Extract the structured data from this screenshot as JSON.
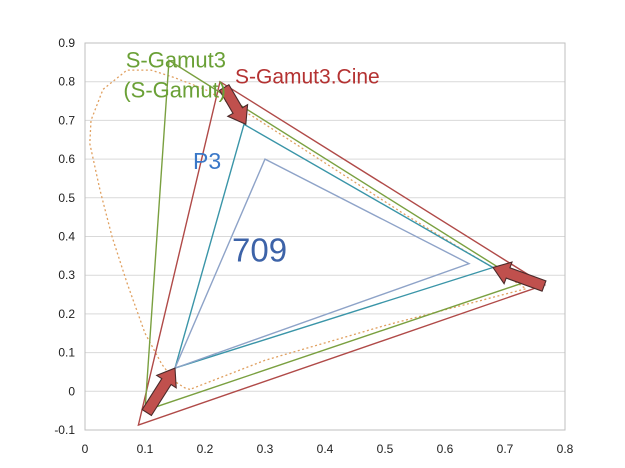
{
  "chart_data": {
    "type": "line",
    "title": "",
    "xlabel": "",
    "ylabel": "",
    "xlim": [
      0,
      0.8
    ],
    "ylim": [
      -0.1,
      0.9
    ],
    "xticks": [
      "0",
      "0.1",
      "0.2",
      "0.3",
      "0.4",
      "0.5",
      "0.6",
      "0.7",
      "0.8"
    ],
    "yticks": [
      "-0.1",
      "0",
      "0.1",
      "0.2",
      "0.3",
      "0.4",
      "0.5",
      "0.6",
      "0.7",
      "0.8",
      "0.9"
    ],
    "grid": "horizontal",
    "series": [
      {
        "name": "S-Gamut3.Cine",
        "color": "#b04a48",
        "closed": true,
        "points": [
          [
            0.766,
            0.275
          ],
          [
            0.225,
            0.8
          ],
          [
            0.089,
            -0.087
          ]
        ]
      },
      {
        "name": "S-Gamut3\n(S-Gamut)",
        "color": "#7aa040",
        "closed": true,
        "points": [
          [
            0.73,
            0.28
          ],
          [
            0.14,
            0.855
          ],
          [
            0.1,
            -0.05
          ]
        ]
      },
      {
        "name": "P3",
        "color": "#3a95a8",
        "closed": true,
        "points": [
          [
            0.68,
            0.32
          ],
          [
            0.265,
            0.69
          ],
          [
            0.15,
            0.06
          ]
        ]
      },
      {
        "name": "709",
        "color": "#8ea3c8",
        "closed": true,
        "points": [
          [
            0.64,
            0.33
          ],
          [
            0.3,
            0.6
          ],
          [
            0.15,
            0.06
          ]
        ]
      }
    ],
    "locus": {
      "color": "#e0a060",
      "points": [
        [
          0.175,
          0.005
        ],
        [
          0.166,
          0.009
        ],
        [
          0.15,
          0.025
        ],
        [
          0.128,
          0.07
        ],
        [
          0.1,
          0.15
        ],
        [
          0.07,
          0.28
        ],
        [
          0.045,
          0.4
        ],
        [
          0.025,
          0.52
        ],
        [
          0.008,
          0.64
        ],
        [
          0.01,
          0.7
        ],
        [
          0.03,
          0.78
        ],
        [
          0.07,
          0.83
        ],
        [
          0.11,
          0.83
        ],
        [
          0.15,
          0.81
        ],
        [
          0.2,
          0.78
        ],
        [
          0.28,
          0.71
        ],
        [
          0.35,
          0.64
        ],
        [
          0.44,
          0.55
        ],
        [
          0.53,
          0.46
        ],
        [
          0.62,
          0.375
        ],
        [
          0.69,
          0.31
        ],
        [
          0.735,
          0.265
        ],
        [
          0.5,
          0.17
        ],
        [
          0.3,
          0.08
        ],
        [
          0.175,
          0.005
        ]
      ]
    },
    "annotations": [
      {
        "text": "S-Gamut3\n(S-Gamut)",
        "x": 0.235,
        "y": 0.8,
        "color": "#6aa036",
        "anchor": "end"
      },
      {
        "text": "S-Gamut3.Cine",
        "x": 0.25,
        "y": 0.795,
        "color": "#b43232",
        "anchor": "start"
      },
      {
        "text": "P3",
        "x": 0.18,
        "y": 0.575,
        "color": "#3a78c8",
        "anchor": "start"
      },
      {
        "text": "709",
        "x": 0.245,
        "y": 0.335,
        "color": "#3d63a8",
        "anchor": "start"
      }
    ],
    "arrows": [
      {
        "from": [
          0.232,
          0.785
        ],
        "to": [
          0.268,
          0.69
        ]
      },
      {
        "from": [
          0.765,
          0.272
        ],
        "to": [
          0.68,
          0.32
        ]
      },
      {
        "from": [
          0.103,
          -0.055
        ],
        "to": [
          0.15,
          0.06
        ]
      }
    ]
  }
}
